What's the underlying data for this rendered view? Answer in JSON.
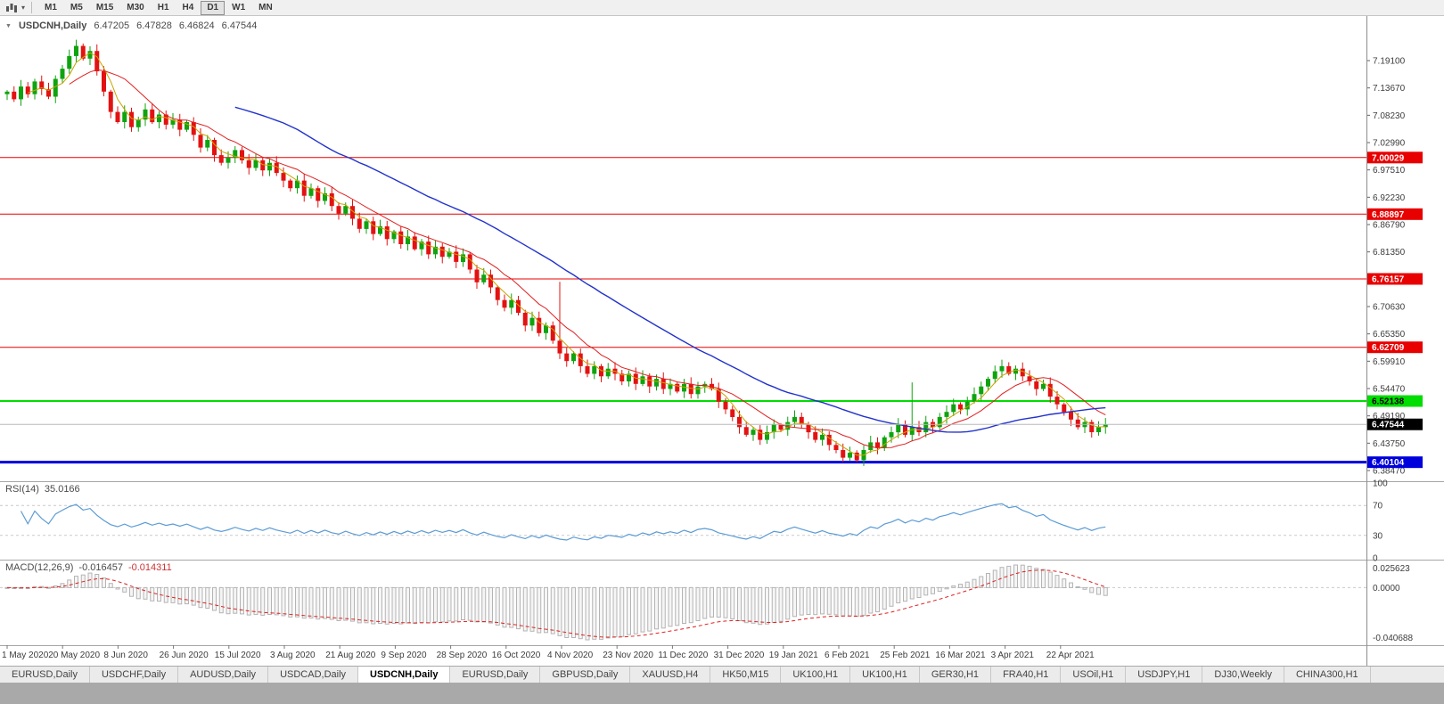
{
  "toolbar": {
    "timeframes": [
      {
        "label": "M1"
      },
      {
        "label": "M5"
      },
      {
        "label": "M15"
      },
      {
        "label": "M30"
      },
      {
        "label": "H1"
      },
      {
        "label": "H4"
      },
      {
        "label": "D1"
      },
      {
        "label": "W1"
      },
      {
        "label": "MN"
      }
    ],
    "active_timeframe": "D1"
  },
  "chart": {
    "title": {
      "symbol": "USDCNH,Daily",
      "open": "6.47205",
      "high": "6.47828",
      "low": "6.46824",
      "close": "6.47544"
    },
    "price_axis_labels": [
      "7.19100",
      "7.13670",
      "7.08230",
      "7.02990",
      "6.97510",
      "6.92230",
      "6.86790",
      "6.81350",
      "6.76030",
      "6.70630",
      "6.65350",
      "6.59910",
      "6.54470",
      "6.49190",
      "6.43750",
      "6.38470"
    ],
    "hlines": [
      {
        "price": 7.00029,
        "label": "7.00029",
        "color": "#e80000",
        "text": "#ffffff",
        "width": 1
      },
      {
        "price": 6.88897,
        "label": "6.88897",
        "color": "#e80000",
        "text": "#ffffff",
        "width": 1
      },
      {
        "price": 6.76157,
        "label": "6.76157",
        "color": "#e80000",
        "text": "#ffffff",
        "width": 1
      },
      {
        "price": 6.62709,
        "label": "6.62709",
        "color": "#e80000",
        "text": "#ffffff",
        "width": 1
      },
      {
        "price": 6.52138,
        "label": "6.52138",
        "color": "#00dd00",
        "text": "#000000",
        "width": 2
      },
      {
        "price": 6.40104,
        "label": "6.40104",
        "color": "#0000dd",
        "text": "#ffffff",
        "width": 3
      }
    ],
    "current_price": {
      "value": "6.47544",
      "price": 6.47544
    },
    "colors": {
      "up": "#0fa30f",
      "down": "#e31212"
    },
    "moving_averages": [
      {
        "period": 4,
        "color": "#c9a400",
        "width": 1
      },
      {
        "period": 10,
        "color": "#e02020",
        "width": 1
      },
      {
        "period": 34,
        "color": "#2233cc",
        "width": 1.4
      }
    ],
    "candles": {
      "first_open": 7.125,
      "closes": [
        7.13,
        7.115,
        7.14,
        7.125,
        7.15,
        7.135,
        7.12,
        7.155,
        7.175,
        7.2,
        7.22,
        7.195,
        7.21,
        7.17,
        7.13,
        7.09,
        7.07,
        7.09,
        7.06,
        7.075,
        7.095,
        7.07,
        7.085,
        7.065,
        7.075,
        7.055,
        7.07,
        7.045,
        7.02,
        7.035,
        7.005,
        6.99,
        7.0,
        7.015,
        6.995,
        6.98,
        6.995,
        6.975,
        6.99,
        6.97,
        6.955,
        6.94,
        6.955,
        6.925,
        6.94,
        6.915,
        6.93,
        6.905,
        6.89,
        6.905,
        6.88,
        6.86,
        6.875,
        6.85,
        6.865,
        6.84,
        6.855,
        6.83,
        6.845,
        6.82,
        6.835,
        6.81,
        6.825,
        6.805,
        6.815,
        6.795,
        6.81,
        6.78,
        6.755,
        6.77,
        6.745,
        6.72,
        6.705,
        6.72,
        6.695,
        6.67,
        6.685,
        6.655,
        6.67,
        6.64,
        6.615,
        6.6,
        6.615,
        6.59,
        6.575,
        6.59,
        6.57,
        6.585,
        6.575,
        6.56,
        6.575,
        6.555,
        6.57,
        6.55,
        6.565,
        6.545,
        6.555,
        6.54,
        6.555,
        6.535,
        6.55,
        6.555,
        6.545,
        6.52,
        6.505,
        6.49,
        6.47,
        6.455,
        6.465,
        6.445,
        6.46,
        6.475,
        6.465,
        6.48,
        6.49,
        6.475,
        6.46,
        6.445,
        6.455,
        6.435,
        6.425,
        6.41,
        6.42,
        6.405,
        6.425,
        6.44,
        6.43,
        6.45,
        6.46,
        6.475,
        6.455,
        6.47,
        6.46,
        6.48,
        6.47,
        6.49,
        6.5,
        6.515,
        6.505,
        6.52,
        6.535,
        6.55,
        6.565,
        6.58,
        6.59,
        6.575,
        6.585,
        6.57,
        6.56,
        6.545,
        6.555,
        6.53,
        6.515,
        6.5,
        6.485,
        6.47,
        6.48,
        6.46,
        6.47,
        6.4754
      ],
      "wick_overrides": {
        "10": {
          "h": 7.232
        },
        "80": {
          "h": 6.756
        },
        "121": {
          "l": 6.401
        },
        "123": {
          "l": 6.401
        },
        "131": {
          "h": 6.558
        }
      }
    }
  },
  "rsi": {
    "label": "RSI(14)",
    "value": "35.0166",
    "line_color": "#5b9bd5",
    "levels": [
      70,
      30
    ],
    "axis_labels": [
      {
        "text": "100",
        "value": 100
      },
      {
        "text": "70",
        "value": 70
      },
      {
        "text": "30",
        "value": 30
      },
      {
        "text": "0",
        "value": 0
      }
    ]
  },
  "macd": {
    "label": "MACD(12,26,9)",
    "value_main": "-0.016457",
    "value_signal": "-0.014311",
    "axis_top": "0.025623",
    "axis_zero": "0.0000",
    "axis_bottom": "-0.040688"
  },
  "date_axis": {
    "labels": [
      "1 May 2020",
      "20 May 2020",
      "8 Jun 2020",
      "26 Jun 2020",
      "15 Jul 2020",
      "3 Aug 2020",
      "21 Aug 2020",
      "9 Sep 2020",
      "28 Sep 2020",
      "16 Oct 2020",
      "4 Nov 2020",
      "23 Nov 2020",
      "11 Dec 2020",
      "31 Dec 2020",
      "19 Jan 2021",
      "6 Feb 2021",
      "25 Feb 2021",
      "16 Mar 2021",
      "3 Apr 2021",
      "22 Apr 2021"
    ]
  },
  "tabs": {
    "active_index": 4,
    "items": [
      {
        "label": "EURUSD,Daily"
      },
      {
        "label": "USDCHF,Daily"
      },
      {
        "label": "AUDUSD,Daily"
      },
      {
        "label": "USDCAD,Daily"
      },
      {
        "label": "USDCNH,Daily"
      },
      {
        "label": "EURUSD,Daily"
      },
      {
        "label": "GBPUSD,Daily"
      },
      {
        "label": "XAUUSD,H4"
      },
      {
        "label": "HK50,M15"
      },
      {
        "label": "UK100,H1"
      },
      {
        "label": "UK100,H1"
      },
      {
        "label": "GER30,H1"
      },
      {
        "label": "FRA40,H1"
      },
      {
        "label": "USOil,H1"
      },
      {
        "label": "USDJPY,H1"
      },
      {
        "label": "DJ30,Weekly"
      },
      {
        "label": "CHINA300,H1"
      }
    ]
  }
}
